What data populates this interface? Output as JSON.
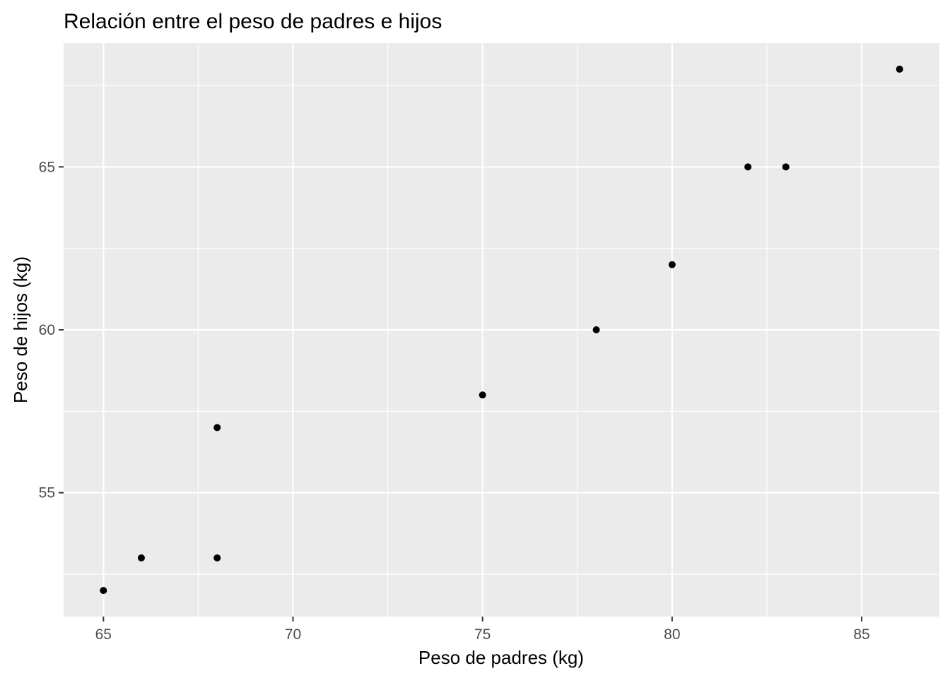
{
  "chart_data": {
    "type": "scatter",
    "title": "Relación entre el peso de padres e hijos",
    "xlabel": "Peso de padres (kg)",
    "ylabel": "Peso de hijos (kg)",
    "xlim": [
      63.95,
      87.05
    ],
    "ylim": [
      51.2,
      68.8
    ],
    "x_ticks": [
      65,
      70,
      75,
      80,
      85
    ],
    "y_ticks": [
      55,
      60,
      65
    ],
    "x_minor": [
      67.5,
      72.5,
      77.5,
      82.5
    ],
    "y_minor": [
      52.5,
      57.5,
      62.5,
      67.5
    ],
    "grid": true,
    "panel_color": "#ebebeb",
    "grid_color": "#ffffff",
    "point_color": "#000000",
    "points": [
      {
        "x": 65,
        "y": 52
      },
      {
        "x": 66,
        "y": 53
      },
      {
        "x": 68,
        "y": 53
      },
      {
        "x": 68,
        "y": 57
      },
      {
        "x": 75,
        "y": 58
      },
      {
        "x": 78,
        "y": 60
      },
      {
        "x": 80,
        "y": 62
      },
      {
        "x": 82,
        "y": 65
      },
      {
        "x": 83,
        "y": 65
      },
      {
        "x": 86,
        "y": 68
      }
    ]
  }
}
